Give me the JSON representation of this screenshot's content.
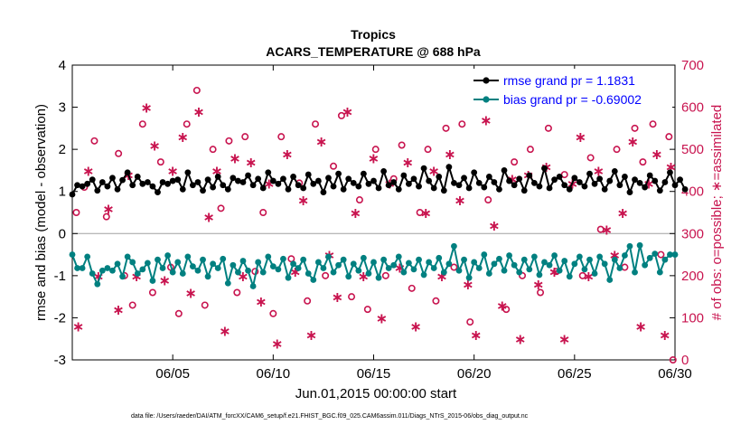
{
  "chart_data": {
    "type": "line",
    "title": "Tropics",
    "subtitle": "ACARS_TEMPERATURE @ 688 hPa",
    "xlabel": "Jun.01,2015 00:00:00 start",
    "ylabel": "rmse and bias (model - observation)",
    "ylabel_right": "# of obs: o=possible; ∗=assimilated",
    "xlim": [
      1,
      31
    ],
    "ylim": [
      -3,
      4
    ],
    "ylim_right": [
      0,
      700
    ],
    "x_ticks": [
      {
        "x": 6,
        "label": "06/05"
      },
      {
        "x": 11,
        "label": "06/10"
      },
      {
        "x": 16,
        "label": "06/15"
      },
      {
        "x": 21,
        "label": "06/20"
      },
      {
        "x": 26,
        "label": "06/25"
      },
      {
        "x": 31,
        "label": "06/30"
      }
    ],
    "y_ticks": [
      {
        "v": -3,
        "label": "-3"
      },
      {
        "v": -2,
        "label": "-2"
      },
      {
        "v": -1,
        "label": "-1"
      },
      {
        "v": 0,
        "label": "0"
      },
      {
        "v": 1,
        "label": "1"
      },
      {
        "v": 2,
        "label": "2"
      },
      {
        "v": 3,
        "label": "3"
      },
      {
        "v": 4,
        "label": "4"
      }
    ],
    "y_ticks_right": [
      {
        "v": 0,
        "label": "0"
      },
      {
        "v": 100,
        "label": "100"
      },
      {
        "v": 200,
        "label": "200"
      },
      {
        "v": 300,
        "label": "300"
      },
      {
        "v": 400,
        "label": "400"
      },
      {
        "v": 500,
        "label": "500"
      },
      {
        "v": 600,
        "label": "600"
      },
      {
        "v": 700,
        "label": "700"
      }
    ],
    "x_start": 1.0,
    "x_step": 0.25,
    "series": [
      {
        "name": "rmse",
        "legend": "rmse grand pr =  1.1831",
        "color": "#000000",
        "values": [
          0.93,
          1.15,
          1.12,
          1.18,
          1.28,
          1.02,
          1.22,
          1.12,
          1.32,
          1.05,
          1.27,
          1.45,
          1.15,
          1.35,
          1.18,
          1.22,
          1.12,
          0.98,
          1.22,
          1.18,
          1.25,
          1.28,
          1.05,
          1.45,
          1.15,
          1.22,
          1.02,
          1.28,
          1.1,
          1.35,
          1.15,
          1.05,
          1.32,
          1.25,
          1.22,
          1.38,
          1.15,
          1.3,
          1.08,
          1.45,
          1.25,
          1.18,
          1.3,
          1.05,
          1.35,
          1.15,
          1.08,
          1.4,
          1.18,
          1.25,
          0.98,
          1.32,
          1.12,
          1.42,
          1.05,
          1.3,
          1.2,
          1.12,
          1.42,
          1.18,
          1.25,
          1.08,
          1.48,
          1.15,
          1.22,
          1.05,
          1.38,
          1.18,
          1.3,
          1.12,
          1.55,
          1.25,
          1.08,
          1.35,
          1.02,
          1.58,
          1.2,
          1.15,
          1.32,
          1.08,
          1.45,
          1.2,
          1.1,
          1.35,
          1.22,
          1.05,
          1.5,
          1.25,
          1.15,
          1.3,
          1.02,
          1.38,
          1.2,
          1.12,
          1.55,
          1.08,
          1.28,
          1.35,
          1.15,
          1.05,
          1.32,
          1.22,
          1.12,
          1.42,
          1.18,
          1.3,
          1.05,
          1.25,
          1.48,
          1.15,
          1.35,
          0.98,
          1.28,
          1.2,
          1.1,
          1.38,
          1.25,
          1.02,
          1.22,
          1.45,
          1.15,
          1.28,
          1.05
        ]
      },
      {
        "name": "bias",
        "legend": "bias grand pr = -0.69002",
        "color": "#008080",
        "values": [
          -0.5,
          -0.82,
          -0.82,
          -0.55,
          -0.95,
          -1.2,
          -0.88,
          -0.82,
          -0.88,
          -0.72,
          -1.02,
          -0.55,
          -0.68,
          -0.95,
          -0.85,
          -0.7,
          -1.12,
          -0.62,
          -0.82,
          -0.52,
          -0.92,
          -0.68,
          -0.95,
          -0.55,
          -0.78,
          -0.88,
          -0.62,
          -1.02,
          -0.72,
          -0.82,
          -0.6,
          -1.18,
          -0.75,
          -0.92,
          -0.65,
          -0.88,
          -1.25,
          -0.68,
          -0.92,
          -0.55,
          -0.78,
          -0.85,
          -0.6,
          -1.05,
          -0.72,
          -0.82,
          -0.62,
          -0.95,
          -1.1,
          -0.68,
          -0.82,
          -0.55,
          -0.92,
          -0.75,
          -0.62,
          -1.02,
          -0.72,
          -0.88,
          -0.58,
          -0.95,
          -0.68,
          -1.05,
          -0.62,
          -0.82,
          -0.75,
          -0.55,
          -0.92,
          -0.7,
          -0.85,
          -0.62,
          -0.98,
          -0.68,
          -0.82,
          -0.58,
          -0.92,
          -0.72,
          -0.3,
          -0.88,
          -0.62,
          -1.05,
          -0.68,
          -0.82,
          -0.5,
          -0.95,
          -0.72,
          -0.6,
          -0.88,
          -0.52,
          -0.75,
          -0.92,
          -0.62,
          -0.85,
          -0.55,
          -0.98,
          -0.68,
          -0.75,
          -0.52,
          -0.88,
          -0.65,
          -1.02,
          -0.72,
          -0.55,
          -0.85,
          -0.62,
          -0.95,
          -0.55,
          -0.72,
          -1.1,
          -0.62,
          -0.82,
          -0.52,
          -0.3,
          -0.92,
          -0.28,
          -0.75,
          -0.58,
          -0.48,
          -0.92,
          -0.62,
          -0.5,
          -0.5
        ]
      }
    ],
    "obs_possible": [
      {
        "x": 1.2,
        "v": 350
      },
      {
        "x": 1.6,
        "v": 410
      },
      {
        "x": 2.1,
        "v": 520
      },
      {
        "x": 2.7,
        "v": 340
      },
      {
        "x": 3.3,
        "v": 490
      },
      {
        "x": 3.6,
        "v": 200
      },
      {
        "x": 4.0,
        "v": 130
      },
      {
        "x": 4.5,
        "v": 560
      },
      {
        "x": 5.0,
        "v": 160
      },
      {
        "x": 5.4,
        "v": 470
      },
      {
        "x": 5.9,
        "v": 220
      },
      {
        "x": 6.3,
        "v": 110
      },
      {
        "x": 6.7,
        "v": 560
      },
      {
        "x": 7.2,
        "v": 640
      },
      {
        "x": 7.6,
        "v": 130
      },
      {
        "x": 8.0,
        "v": 500
      },
      {
        "x": 8.4,
        "v": 360
      },
      {
        "x": 8.8,
        "v": 520
      },
      {
        "x": 9.2,
        "v": 160
      },
      {
        "x": 9.6,
        "v": 530
      },
      {
        "x": 10.1,
        "v": 210
      },
      {
        "x": 10.5,
        "v": 350
      },
      {
        "x": 11.0,
        "v": 110
      },
      {
        "x": 11.4,
        "v": 530
      },
      {
        "x": 11.9,
        "v": 240
      },
      {
        "x": 12.3,
        "v": 420
      },
      {
        "x": 12.7,
        "v": 140
      },
      {
        "x": 13.1,
        "v": 560
      },
      {
        "x": 13.6,
        "v": 200
      },
      {
        "x": 14.0,
        "v": 460
      },
      {
        "x": 14.4,
        "v": 580
      },
      {
        "x": 14.9,
        "v": 150
      },
      {
        "x": 15.3,
        "v": 380
      },
      {
        "x": 15.7,
        "v": 120
      },
      {
        "x": 16.1,
        "v": 500
      },
      {
        "x": 16.6,
        "v": 200
      },
      {
        "x": 17.0,
        "v": 430
      },
      {
        "x": 17.4,
        "v": 510
      },
      {
        "x": 17.9,
        "v": 170
      },
      {
        "x": 18.3,
        "v": 350
      },
      {
        "x": 18.7,
        "v": 500
      },
      {
        "x": 19.1,
        "v": 140
      },
      {
        "x": 19.6,
        "v": 550
      },
      {
        "x": 20.0,
        "v": 220
      },
      {
        "x": 20.4,
        "v": 560
      },
      {
        "x": 20.8,
        "v": 90
      },
      {
        "x": 21.3,
        "v": 600
      },
      {
        "x": 21.7,
        "v": 380
      },
      {
        "x": 22.1,
        "v": 620
      },
      {
        "x": 22.6,
        "v": 120
      },
      {
        "x": 23.0,
        "v": 470
      },
      {
        "x": 23.4,
        "v": 200
      },
      {
        "x": 23.8,
        "v": 500
      },
      {
        "x": 24.3,
        "v": 160
      },
      {
        "x": 24.7,
        "v": 550
      },
      {
        "x": 25.1,
        "v": 210
      },
      {
        "x": 25.5,
        "v": 440
      },
      {
        "x": 26.0,
        "v": 600
      },
      {
        "x": 26.4,
        "v": 200
      },
      {
        "x": 26.8,
        "v": 480
      },
      {
        "x": 27.3,
        "v": 310
      },
      {
        "x": 27.7,
        "v": 640
      },
      {
        "x": 28.1,
        "v": 500
      },
      {
        "x": 28.5,
        "v": 220
      },
      {
        "x": 29.0,
        "v": 550
      },
      {
        "x": 29.4,
        "v": 470
      },
      {
        "x": 29.9,
        "v": 560
      },
      {
        "x": 30.3,
        "v": 250
      },
      {
        "x": 30.7,
        "v": 530
      },
      {
        "x": 30.9,
        "v": 0
      }
    ],
    "obs_assimilated": [
      {
        "x": 1.3,
        "v": 80
      },
      {
        "x": 1.8,
        "v": 450
      },
      {
        "x": 2.3,
        "v": 200
      },
      {
        "x": 2.8,
        "v": 360
      },
      {
        "x": 3.3,
        "v": 120
      },
      {
        "x": 3.8,
        "v": 440
      },
      {
        "x": 4.2,
        "v": 200
      },
      {
        "x": 4.7,
        "v": 600
      },
      {
        "x": 5.1,
        "v": 510
      },
      {
        "x": 5.6,
        "v": 190
      },
      {
        "x": 6.0,
        "v": 450
      },
      {
        "x": 6.5,
        "v": 530
      },
      {
        "x": 6.9,
        "v": 160
      },
      {
        "x": 7.3,
        "v": 590
      },
      {
        "x": 7.8,
        "v": 340
      },
      {
        "x": 8.2,
        "v": 450
      },
      {
        "x": 8.6,
        "v": 70
      },
      {
        "x": 9.1,
        "v": 480
      },
      {
        "x": 9.5,
        "v": 200
      },
      {
        "x": 9.9,
        "v": 470
      },
      {
        "x": 10.4,
        "v": 140
      },
      {
        "x": 10.8,
        "v": 420
      },
      {
        "x": 11.2,
        "v": 40
      },
      {
        "x": 11.7,
        "v": 490
      },
      {
        "x": 12.1,
        "v": 210
      },
      {
        "x": 12.5,
        "v": 380
      },
      {
        "x": 12.9,
        "v": 60
      },
      {
        "x": 13.4,
        "v": 520
      },
      {
        "x": 13.8,
        "v": 250
      },
      {
        "x": 14.2,
        "v": 150
      },
      {
        "x": 14.7,
        "v": 590
      },
      {
        "x": 15.1,
        "v": 350
      },
      {
        "x": 15.5,
        "v": 200
      },
      {
        "x": 16.0,
        "v": 480
      },
      {
        "x": 16.4,
        "v": 100
      },
      {
        "x": 16.8,
        "v": 420
      },
      {
        "x": 17.3,
        "v": 220
      },
      {
        "x": 17.7,
        "v": 470
      },
      {
        "x": 18.1,
        "v": 80
      },
      {
        "x": 18.6,
        "v": 350
      },
      {
        "x": 19.0,
        "v": 450
      },
      {
        "x": 19.4,
        "v": 200
      },
      {
        "x": 19.8,
        "v": 490
      },
      {
        "x": 20.3,
        "v": 380
      },
      {
        "x": 20.7,
        "v": 180
      },
      {
        "x": 21.1,
        "v": 60
      },
      {
        "x": 21.6,
        "v": 570
      },
      {
        "x": 22.0,
        "v": 320
      },
      {
        "x": 22.4,
        "v": 130
      },
      {
        "x": 22.9,
        "v": 430
      },
      {
        "x": 23.3,
        "v": 50
      },
      {
        "x": 23.7,
        "v": 440
      },
      {
        "x": 24.2,
        "v": 180
      },
      {
        "x": 24.6,
        "v": 460
      },
      {
        "x": 25.0,
        "v": 210
      },
      {
        "x": 25.5,
        "v": 50
      },
      {
        "x": 25.9,
        "v": 420
      },
      {
        "x": 26.3,
        "v": 530
      },
      {
        "x": 26.7,
        "v": 200
      },
      {
        "x": 27.2,
        "v": 450
      },
      {
        "x": 27.6,
        "v": 310
      },
      {
        "x": 28.0,
        "v": 250
      },
      {
        "x": 28.4,
        "v": 350
      },
      {
        "x": 28.9,
        "v": 520
      },
      {
        "x": 29.3,
        "v": 80
      },
      {
        "x": 29.7,
        "v": 420
      },
      {
        "x": 30.1,
        "v": 490
      },
      {
        "x": 30.5,
        "v": 60
      },
      {
        "x": 30.8,
        "v": 460
      }
    ],
    "footer": "data file: /Users/raeder/DAI/ATM_forcXX/CAM6_setup/f.e21.FHIST_BGC.f09_025.CAM6assim.011/Diags_NTrS_2015-06/obs_diag_output.nc",
    "colors": {
      "rmse": "#000000",
      "bias": "#008080",
      "obs": "#c8144f",
      "legend_text": "#0000ff",
      "zero_line": "#a0a0a0"
    }
  }
}
